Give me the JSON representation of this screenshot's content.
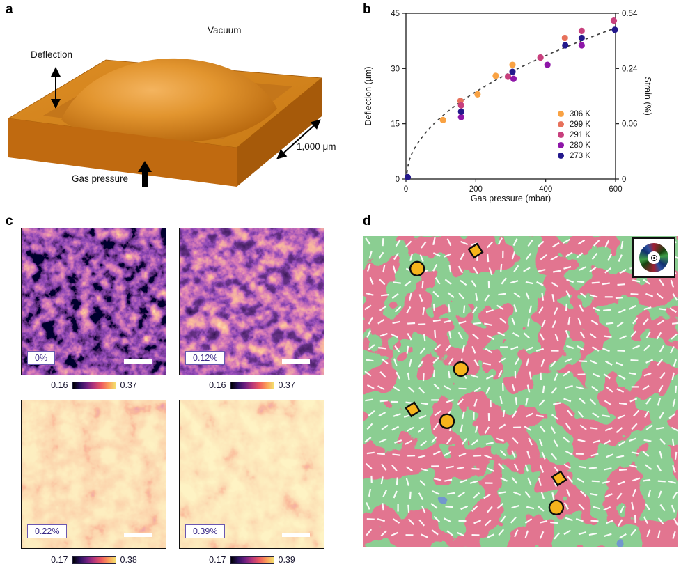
{
  "panels": {
    "a": {
      "letter": "a",
      "labels": {
        "vacuum": "Vacuum",
        "deflection": "Deflection",
        "gas_pressure": "Gas pressure",
        "scale": "1,000 μm"
      },
      "colors": {
        "top_face": "#d8861f",
        "front_face": "#c06a10",
        "side_face": "#a65a0a",
        "recess": "#c4761a",
        "dome_light": "#f2ad55",
        "dome_dark": "#bd6a0e",
        "arrow": "#000000"
      }
    },
    "b": {
      "letter": "b"
    },
    "c": {
      "letter": "c",
      "images": [
        {
          "strain_label": "0%",
          "cbar_min": "0.16",
          "cbar_max": "0.37"
        },
        {
          "strain_label": "0.12%",
          "cbar_min": "0.16",
          "cbar_max": "0.37"
        },
        {
          "strain_label": "0.22%",
          "cbar_min": "0.17",
          "cbar_max": "0.38"
        },
        {
          "strain_label": "0.39%",
          "cbar_min": "0.17",
          "cbar_max": "0.39"
        }
      ],
      "colormap": [
        "#000004",
        "#2c115f",
        "#711f81",
        "#b73779",
        "#ed5a5f",
        "#fb9d5a",
        "#f3dd6d"
      ]
    },
    "d": {
      "letter": "d",
      "domain_colors": {
        "red": "#c22c48",
        "green": "#3e9a47",
        "blue": "#2c4f9e"
      },
      "dash_field": {
        "color": "#ffffff",
        "spacing": 19,
        "dash_length": 11,
        "dash_width": 2.2
      },
      "markers": {
        "color": "#f6b41c",
        "outline": "#0d0d0d",
        "circle_radius": 10,
        "diamond_size": 15,
        "circles": [
          [
            0.171,
            0.105
          ],
          [
            0.31,
            0.428
          ],
          [
            0.266,
            0.596
          ],
          [
            0.614,
            0.874
          ]
        ],
        "diamonds": [
          [
            0.357,
            0.047
          ],
          [
            0.157,
            0.558
          ],
          [
            0.623,
            0.78
          ]
        ]
      },
      "inset": {
        "symbol": "orientation-color-wheel-with-out-of-plane-dot"
      }
    }
  },
  "chart_data": {
    "type": "scatter",
    "title": "",
    "xlabel": "Gas pressure (mbar)",
    "ylabel_left": "Deflection (μm)",
    "ylabel_right": "Strain (%)",
    "xlim": [
      0,
      600
    ],
    "ylim_left": [
      0,
      45
    ],
    "xticks": [
      0,
      200,
      400,
      600
    ],
    "yticks_left": [
      0,
      15,
      30,
      45
    ],
    "yticks_right": {
      "labels": [
        "0",
        "0.06",
        "0.24",
        "0.54"
      ],
      "at_deflection": [
        0,
        15,
        30,
        45
      ]
    },
    "grid": false,
    "legend_position": "inside-right",
    "series": [
      {
        "name": "306 K",
        "color": "#F9A243",
        "points": [
          [
            106,
            16.0
          ],
          [
            205,
            23.0
          ],
          [
            257,
            28.0
          ],
          [
            305,
            31.0
          ]
        ]
      },
      {
        "name": "299 K",
        "color": "#E7715B",
        "points": [
          [
            156,
            21.2
          ],
          [
            455,
            38.3
          ]
        ]
      },
      {
        "name": "291 K",
        "color": "#C8407D",
        "points": [
          [
            158,
            20.0
          ],
          [
            292,
            27.8
          ],
          [
            385,
            33.0
          ],
          [
            503,
            40.2
          ],
          [
            595,
            43.0
          ]
        ]
      },
      {
        "name": "280 K",
        "color": "#8E16A8",
        "points": [
          [
            158,
            16.8
          ],
          [
            308,
            27.2
          ],
          [
            405,
            31.0
          ],
          [
            503,
            36.3
          ]
        ]
      },
      {
        "name": "273 K",
        "color": "#23188C",
        "points": [
          [
            5,
            0.5
          ],
          [
            158,
            18.3
          ],
          [
            305,
            29.1
          ],
          [
            456,
            36.3
          ],
          [
            503,
            38.3
          ],
          [
            598,
            40.5
          ]
        ]
      }
    ],
    "fit": {
      "type": "sqrt",
      "coef": 1.674,
      "style": "dashed",
      "color": "#3d3d3d"
    }
  }
}
